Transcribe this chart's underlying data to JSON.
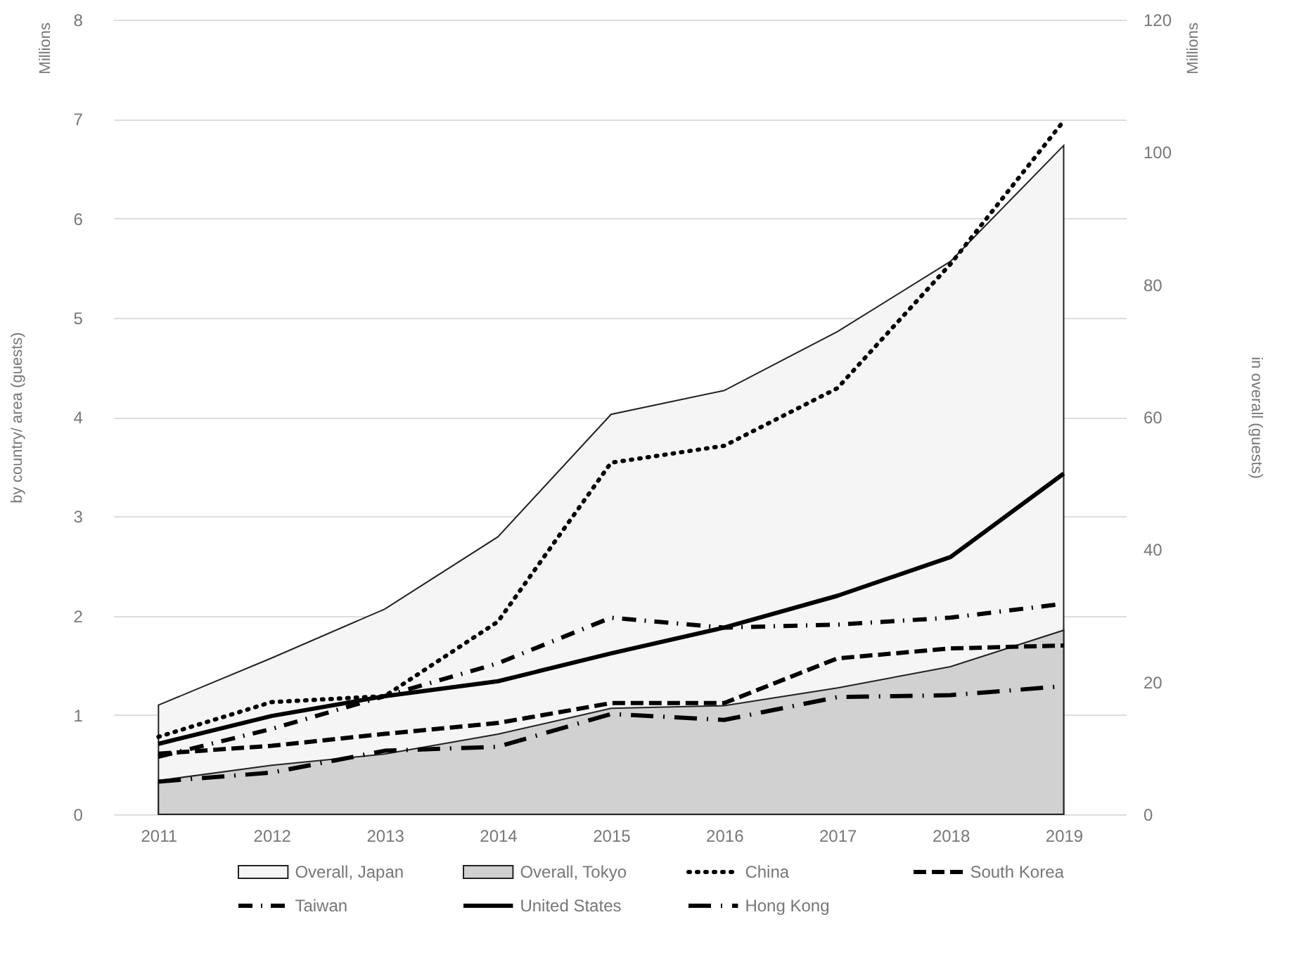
{
  "chart_data": {
    "type": "line",
    "ylabel": "by country/ area (guests)",
    "y2label": "in overall (guests)",
    "annotations": [
      "Millions",
      "Millions"
    ],
    "categories": [
      "2011",
      "2012",
      "2013",
      "2014",
      "2015",
      "2016",
      "2017",
      "2018",
      "2019"
    ],
    "ylim": [
      0,
      8
    ],
    "yticks": [
      0,
      1,
      2,
      3,
      4,
      5,
      6,
      7,
      8
    ],
    "y2lim": [
      0,
      120
    ],
    "y2ticks": [
      0,
      20,
      40,
      60,
      80,
      100,
      120
    ],
    "grid": "y",
    "legend": "bottom",
    "series": [
      {
        "name": "Overall, Japan",
        "type": "area",
        "axis": "y2",
        "color": "#f4f5f4",
        "values": [
          16.5,
          23.6,
          31,
          41.9,
          60.4,
          64,
          72.9,
          83.5,
          101
        ]
      },
      {
        "name": "Overall, Tokyo",
        "type": "area",
        "axis": "y2",
        "color": "#d0d1d0",
        "values": [
          5.1,
          7.4,
          9.1,
          12.1,
          16,
          16.4,
          19.1,
          22.3,
          27.8
        ]
      },
      {
        "name": "China",
        "type": "line",
        "color": "#000000",
        "line_style": "dotted",
        "values": [
          0.78,
          1.13,
          1.19,
          1.94,
          3.54,
          3.71,
          4.29,
          5.54,
          6.98
        ]
      },
      {
        "name": "South Korea",
        "type": "line",
        "color": "#000000",
        "line_style": "dashed",
        "values": [
          0.61,
          0.69,
          0.81,
          0.92,
          1.12,
          1.12,
          1.57,
          1.67,
          1.7
        ]
      },
      {
        "name": "Taiwan",
        "type": "line",
        "color": "#000000",
        "line_style": "dashdot",
        "values": [
          0.58,
          0.86,
          1.19,
          1.52,
          1.98,
          1.88,
          1.91,
          1.98,
          2.12
        ]
      },
      {
        "name": "United States",
        "type": "line",
        "color": "#000000",
        "line_style": "solid",
        "values": [
          0.71,
          0.99,
          1.19,
          1.34,
          1.62,
          1.88,
          2.2,
          2.59,
          3.43
        ]
      },
      {
        "name": "Hong Kong",
        "type": "line",
        "color": "#000000",
        "line_style": "longdashdot",
        "values": [
          0.33,
          0.42,
          0.64,
          0.68,
          1.01,
          0.95,
          1.18,
          1.2,
          1.29
        ]
      }
    ]
  }
}
